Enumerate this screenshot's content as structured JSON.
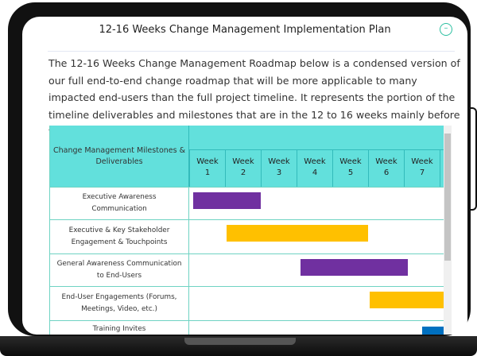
{
  "title": "12-16 Weeks Change Management Implementation Plan",
  "intro": "The 12-16 Weeks Change Management Roadmap below is a condensed version of our full end-to-end change roadmap that will be more applicable to many impacted end-users than the full project timeline. It represents the portion of the timeline deliverables and milestones that are in the 12 to 16 weeks mainly before the Go-Live date.",
  "table": {
    "header": "Change Management Milestones & Deliverables",
    "weeks": [
      "Week 1",
      "Week 2",
      "Week 3",
      "Week 4",
      "Week 5",
      "Week 6",
      "Week 7"
    ],
    "rows": [
      {
        "label": "Executive Awareness Communication",
        "start_week": 1.1,
        "end_week": 3.0,
        "color": "#7030a0"
      },
      {
        "label": "Executive & Key Stakeholder Engagement & Touchpoints",
        "start_week": 2.05,
        "end_week": 6.0,
        "color": "#ffc000"
      },
      {
        "label": "General Awareness Communication to End-Users",
        "start_week": 4.1,
        "end_week": 7.1,
        "color": "#7030a0"
      },
      {
        "label": "End-User Engagements (Forums, Meetings, Video, etc.)",
        "start_week": 6.05,
        "end_week": 8.2,
        "color": "#ffc000"
      },
      {
        "label": "Training Invites",
        "start_week": 7.5,
        "end_week": 8.2,
        "color": "#0070c0"
      }
    ]
  },
  "colors": {
    "header_bg": "#62e0dc",
    "accent": "#2bbfa0"
  }
}
